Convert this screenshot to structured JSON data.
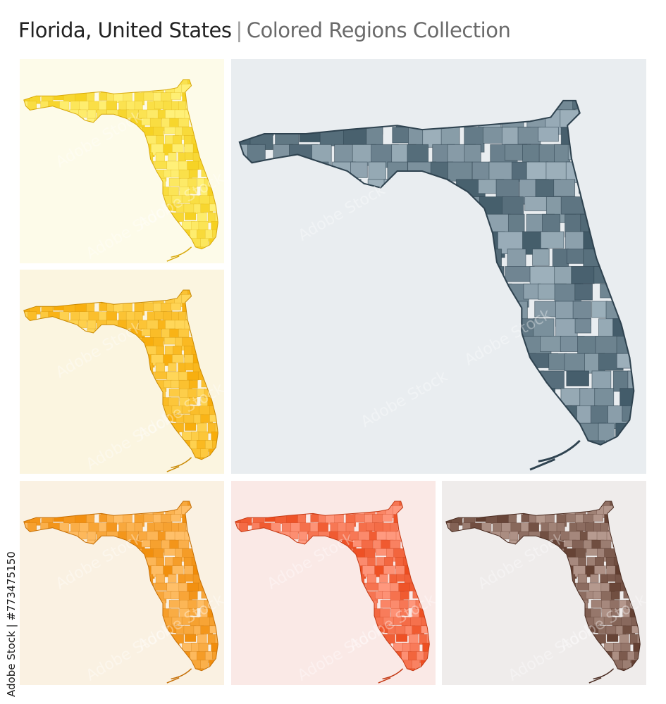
{
  "header": {
    "title": "Florida, United States",
    "separator": "|",
    "subtitle": "Colored Regions Collection"
  },
  "side_text": "Adobe Stock | #773475150",
  "watermark": "Adobe Stock",
  "maps": [
    {
      "id": "yellow",
      "background": "#fdfbe9",
      "fill_light": "#fff17a",
      "fill_dark": "#f5cf1a",
      "stroke": "#d8a90c"
    },
    {
      "id": "amber",
      "background": "#fbf5e0",
      "fill_light": "#ffd75a",
      "fill_dark": "#f7aa05",
      "stroke": "#c98a05"
    },
    {
      "id": "orange",
      "background": "#faf1e2",
      "fill_light": "#ffc06a",
      "fill_dark": "#f08a05",
      "stroke": "#c56f06"
    },
    {
      "id": "red",
      "background": "#fae9e6",
      "fill_light": "#ff9a80",
      "fill_dark": "#ec4a1c",
      "stroke": "#c43a15"
    },
    {
      "id": "brown",
      "background": "#efeceb",
      "fill_light": "#b79b90",
      "fill_dark": "#5e3a2c",
      "stroke": "#4a2c21"
    },
    {
      "id": "slate",
      "background": "#e9edf0",
      "fill_light": "#9fb2bd",
      "fill_dark": "#3d5664",
      "stroke": "#2f4350"
    }
  ]
}
